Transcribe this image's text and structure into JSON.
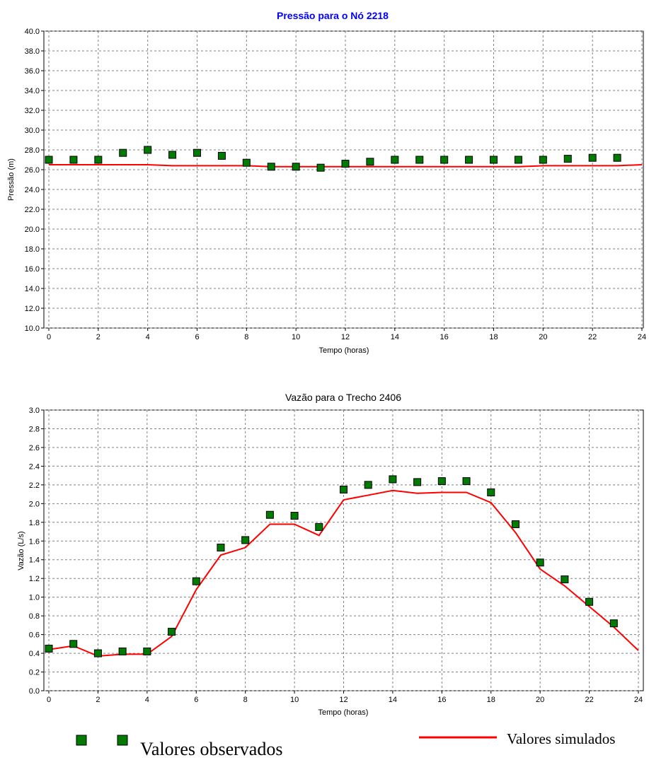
{
  "chart_data": [
    {
      "type": "line",
      "title": "Pressão para o Nó 2218",
      "title_color": "#0000ff",
      "xlabel": "Tempo (horas)",
      "ylabel": "Pressão (m)",
      "xlim": [
        0,
        24
      ],
      "ylim": [
        10,
        40
      ],
      "x_ticks": [
        "0",
        "2",
        "4",
        "6",
        "8",
        "10",
        "12",
        "14",
        "16",
        "18",
        "20",
        "22",
        "24"
      ],
      "y_ticks": [
        "10.0",
        "12.0",
        "14.0",
        "16.0",
        "18.0",
        "20.0",
        "22.0",
        "24.0",
        "26.0",
        "28.0",
        "30.0",
        "32.0",
        "34.0",
        "36.0",
        "38.0",
        "40.0"
      ],
      "grid": true,
      "series": [
        {
          "kind": "scatter",
          "color": "#007a00",
          "x": [
            0,
            1,
            2,
            3,
            4,
            5,
            6,
            7,
            8,
            9,
            10,
            11,
            12,
            13,
            14,
            15,
            16,
            17,
            18,
            19,
            20,
            21,
            22,
            23
          ],
          "y": [
            27.0,
            27.0,
            27.0,
            27.7,
            28.0,
            27.5,
            27.7,
            27.4,
            26.7,
            26.3,
            26.3,
            26.2,
            26.6,
            26.8,
            27.0,
            27.0,
            27.0,
            27.0,
            27.0,
            27.0,
            27.0,
            27.1,
            27.2,
            27.2
          ]
        },
        {
          "kind": "line",
          "color": "#ff0000",
          "x": [
            0,
            1,
            2,
            3,
            4,
            5,
            6,
            7,
            8,
            9,
            10,
            11,
            12,
            13,
            14,
            15,
            16,
            17,
            18,
            19,
            20,
            21,
            22,
            23,
            24
          ],
          "y": [
            26.5,
            26.5,
            26.5,
            26.5,
            26.5,
            26.4,
            26.4,
            26.4,
            26.4,
            26.3,
            26.3,
            26.3,
            26.3,
            26.3,
            26.3,
            26.3,
            26.3,
            26.3,
            26.3,
            26.3,
            26.4,
            26.4,
            26.4,
            26.4,
            26.5
          ]
        }
      ]
    },
    {
      "type": "line",
      "title": "Vazão para o Trecho 2406",
      "title_color": "#000000",
      "xlabel": "Tempo (horas)",
      "ylabel": "Vazão (L/s)",
      "xlim": [
        0,
        24
      ],
      "ylim": [
        0,
        3
      ],
      "x_ticks": [
        "0",
        "2",
        "4",
        "6",
        "8",
        "10",
        "12",
        "14",
        "16",
        "18",
        "20",
        "22",
        "24"
      ],
      "y_ticks": [
        "0.0",
        "0.2",
        "0.4",
        "0.6",
        "0.8",
        "1.0",
        "1.2",
        "1.4",
        "1.6",
        "1.8",
        "2.0",
        "2.2",
        "2.4",
        "2.6",
        "2.8",
        "3.0"
      ],
      "grid": true,
      "series": [
        {
          "kind": "scatter",
          "color": "#007a00",
          "x": [
            0,
            1,
            2,
            3,
            4,
            5,
            6,
            7,
            8,
            9,
            10,
            11,
            12,
            13,
            14,
            15,
            16,
            17,
            18,
            19,
            20,
            21,
            22,
            23
          ],
          "y": [
            0.45,
            0.5,
            0.4,
            0.42,
            0.42,
            0.63,
            1.17,
            1.53,
            1.61,
            1.88,
            1.87,
            1.75,
            2.15,
            2.2,
            2.26,
            2.23,
            2.24,
            2.24,
            2.12,
            1.78,
            1.37,
            1.19,
            0.95,
            0.72
          ]
        },
        {
          "kind": "line",
          "color": "#ff0000",
          "x": [
            0,
            1,
            2,
            3,
            4,
            5,
            6,
            7,
            8,
            9,
            10,
            11,
            12,
            13,
            14,
            15,
            16,
            17,
            18,
            19,
            20,
            21,
            22,
            23,
            24
          ],
          "y": [
            0.44,
            0.48,
            0.37,
            0.39,
            0.39,
            0.58,
            1.08,
            1.45,
            1.53,
            1.78,
            1.78,
            1.66,
            2.04,
            2.09,
            2.14,
            2.11,
            2.12,
            2.12,
            2.01,
            1.69,
            1.3,
            1.12,
            0.9,
            0.68,
            0.43
          ]
        }
      ]
    }
  ],
  "legend": {
    "observed_label": "Valores observados",
    "simulated_label": "Valores simulados",
    "marker_color": "#007a00",
    "line_color": "#ff0000"
  }
}
